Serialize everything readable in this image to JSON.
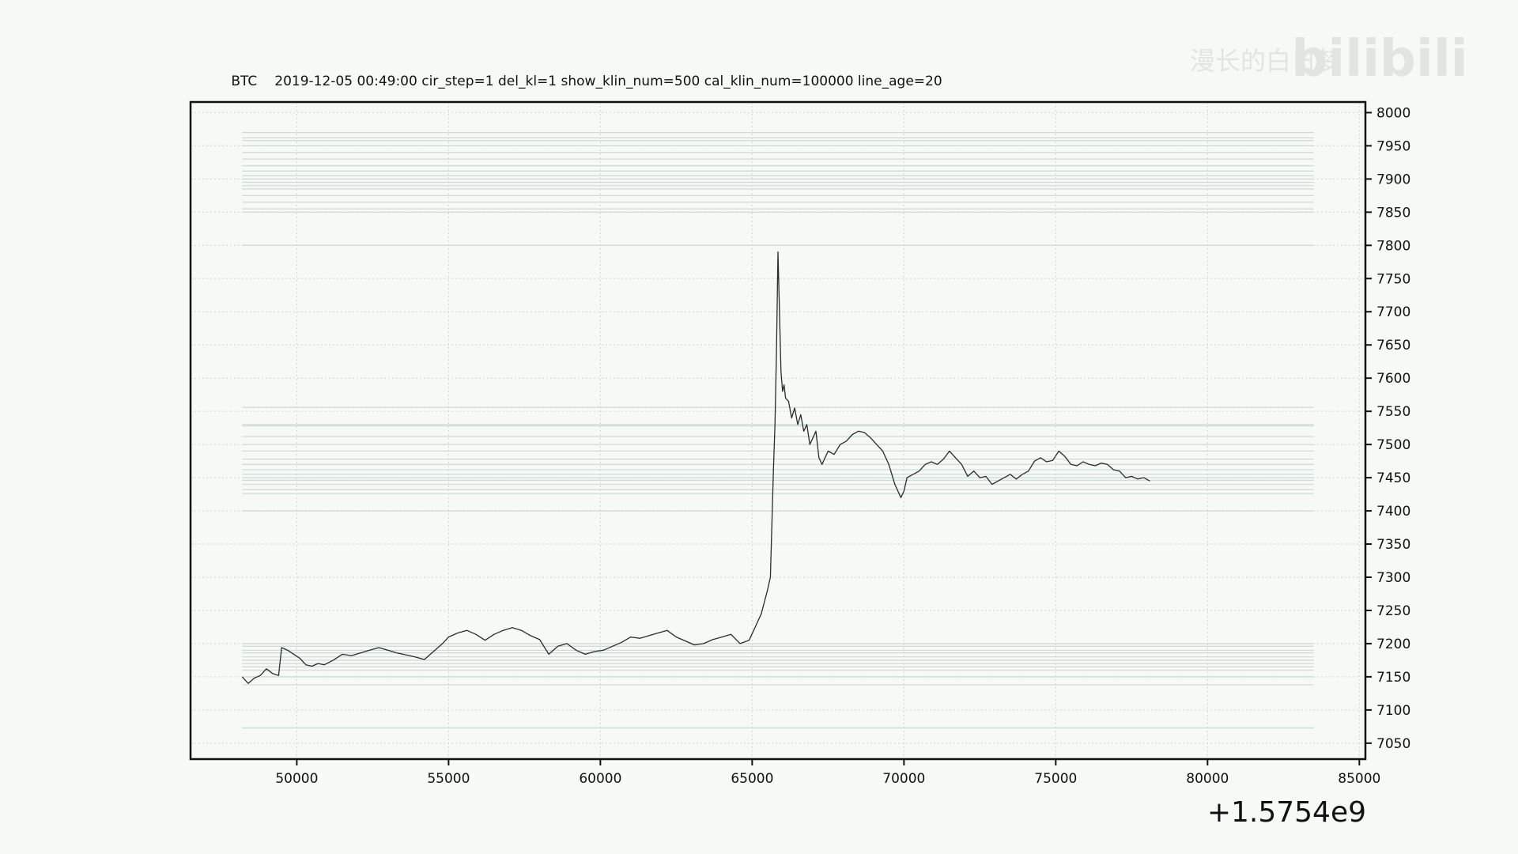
{
  "watermark": {
    "brand_text": "bilibili",
    "side_text": "漫长的白日梦"
  },
  "chart_data": {
    "type": "line",
    "title_symbol": "BTC",
    "title_params": "2019-12-05 00:49:00 cir_step=1 del_kl=1 show_klin_num=500 cal_klin_num=100000 line_age=20",
    "x_offset_text": "+1.5754e9",
    "xlim": [
      46500,
      85200
    ],
    "ylim": [
      7026,
      8016
    ],
    "x_ticks": [
      50000,
      55000,
      60000,
      65000,
      70000,
      75000,
      80000,
      85000
    ],
    "y_ticks": [
      7050,
      7100,
      7150,
      7200,
      7250,
      7300,
      7350,
      7400,
      7450,
      7500,
      7550,
      7600,
      7650,
      7700,
      7750,
      7800,
      7850,
      7900,
      7950,
      8000
    ],
    "grid": true,
    "colors": {
      "price": "#2b2b2b",
      "level_lines": "#c7d8d3",
      "grid": "#cfd8d4",
      "axes": "#111111"
    },
    "level_lines_x_range": [
      48200,
      83500
    ],
    "level_lines": [
      7970,
      7962,
      7958,
      7950,
      7940,
      7930,
      7920,
      7912,
      7905,
      7900,
      7895,
      7890,
      7885,
      7875,
      7865,
      7855,
      7850,
      7800,
      7556,
      7530,
      7528,
      7512,
      7500,
      7490,
      7478,
      7470,
      7462,
      7455,
      7450,
      7446,
      7440,
      7432,
      7426,
      7400,
      7200,
      7196,
      7190,
      7186,
      7180,
      7175,
      7170,
      7165,
      7160,
      7150,
      7138,
      7073
    ],
    "series": [
      {
        "x": [
          48200,
          48400,
          48600,
          48800,
          49000,
          49200,
          49400,
          49500,
          49700,
          49900,
          50100,
          50300,
          50500,
          50700,
          50900,
          51200,
          51500,
          51800,
          52100,
          52400,
          52700,
          53000,
          53300,
          53600,
          53900,
          54200,
          54500,
          54800,
          55000,
          55300,
          55600,
          55900,
          56200,
          56500,
          56800,
          57100,
          57400,
          57700,
          58000,
          58300,
          58600,
          58900,
          59200,
          59500,
          59800,
          60100,
          60400,
          60700,
          61000,
          61300,
          61600,
          61900,
          62200,
          62500,
          62800,
          63100,
          63400,
          63700,
          64000,
          64300,
          64600,
          64900,
          65100,
          65300,
          65500,
          65600,
          65700,
          65750,
          65800,
          65850,
          65900,
          65950,
          66000,
          66050,
          66100,
          66200,
          66300,
          66400,
          66500,
          66600,
          66700,
          66800,
          66900,
          67000,
          67100,
          67200,
          67300,
          67500,
          67700,
          67900,
          68100,
          68300,
          68500,
          68700,
          68900,
          69100,
          69300,
          69500,
          69700,
          69900,
          70000,
          70100,
          70300,
          70500,
          70700,
          70900,
          71100,
          71300,
          71500,
          71700,
          71900,
          72100,
          72300,
          72500,
          72700,
          72900,
          73100,
          73300,
          73500,
          73700,
          73900,
          74100,
          74300,
          74500,
          74700,
          74900,
          75100,
          75300,
          75500,
          75700,
          75900,
          76100,
          76300,
          76500,
          76700,
          76900,
          77100,
          77300,
          77500,
          77700,
          77900,
          78100
        ],
        "values": [
          7150,
          7140,
          7148,
          7152,
          7162,
          7155,
          7152,
          7194,
          7190,
          7184,
          7178,
          7168,
          7166,
          7170,
          7168,
          7175,
          7184,
          7182,
          7186,
          7190,
          7194,
          7190,
          7186,
          7183,
          7180,
          7176,
          7188,
          7200,
          7210,
          7216,
          7220,
          7214,
          7205,
          7214,
          7220,
          7224,
          7220,
          7212,
          7206,
          7184,
          7196,
          7200,
          7190,
          7184,
          7188,
          7190,
          7196,
          7202,
          7210,
          7208,
          7212,
          7216,
          7220,
          7210,
          7204,
          7198,
          7200,
          7206,
          7210,
          7214,
          7200,
          7205,
          7225,
          7245,
          7280,
          7300,
          7460,
          7530,
          7640,
          7790,
          7700,
          7610,
          7580,
          7590,
          7570,
          7565,
          7540,
          7555,
          7530,
          7545,
          7520,
          7530,
          7500,
          7510,
          7520,
          7480,
          7470,
          7490,
          7485,
          7500,
          7505,
          7515,
          7520,
          7518,
          7510,
          7500,
          7490,
          7470,
          7440,
          7420,
          7430,
          7450,
          7455,
          7460,
          7470,
          7474,
          7470,
          7478,
          7490,
          7480,
          7470,
          7452,
          7460,
          7450,
          7452,
          7440,
          7445,
          7450,
          7455,
          7448,
          7455,
          7460,
          7475,
          7480,
          7474,
          7476,
          7490,
          7482,
          7470,
          7468,
          7474,
          7470,
          7468,
          7472,
          7470,
          7462,
          7460,
          7450,
          7452,
          7448,
          7450,
          7445
        ]
      }
    ]
  }
}
